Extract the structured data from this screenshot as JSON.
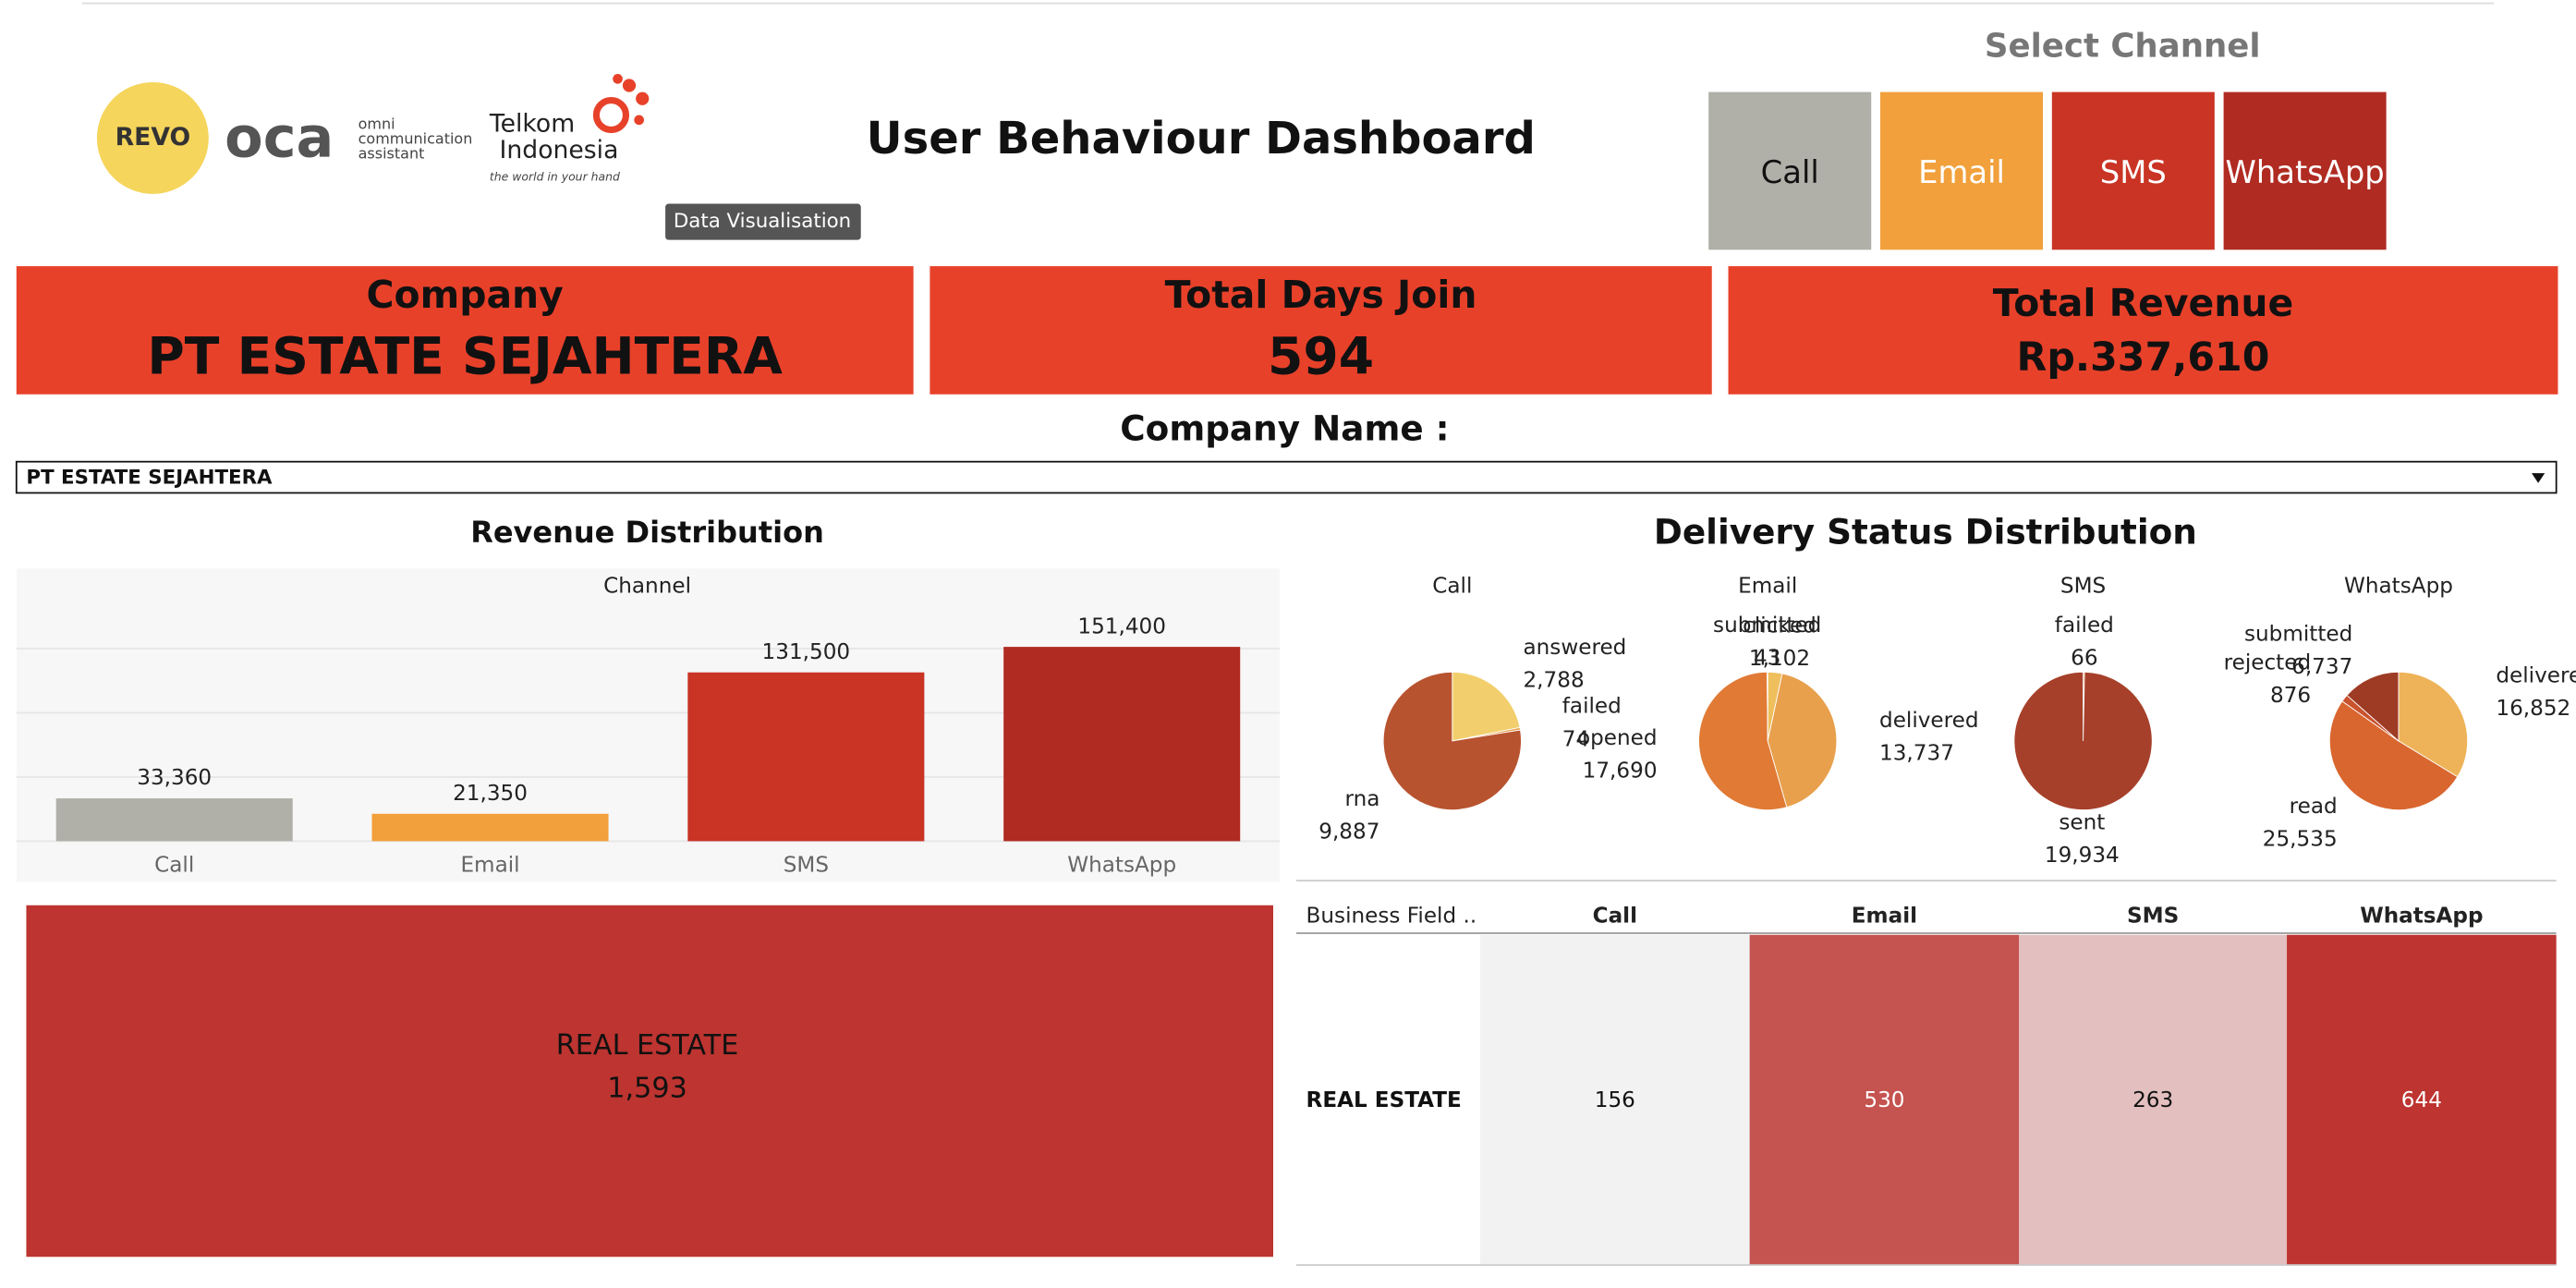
{
  "header": {
    "logo_revo": "REVO",
    "logo_oca": "oca",
    "logo_oca_tagline": [
      "omni",
      "communication",
      "assistant"
    ],
    "logo_telkom": [
      "Telkom",
      "Indonesia"
    ],
    "logo_telkom_tagline": "the world in your hand",
    "tooltip": "Data Visualisation",
    "title": "User Behaviour Dashboard"
  },
  "channel_selector": {
    "label": "Select Channel",
    "buttons": [
      {
        "text": "Call",
        "color": "#b0afa8",
        "text_color": "#111111"
      },
      {
        "text": "Email",
        "color": "#f2a03b",
        "text_color": "#ffffff"
      },
      {
        "text": "SMS",
        "color": "#c93425",
        "text_color": "#ffffff"
      },
      {
        "text": "WhatsApp",
        "color": "#b02b22",
        "text_color": "#ffffff"
      }
    ]
  },
  "kpis": [
    {
      "label": "Company",
      "value": "PT ESTATE SEJAHTERA"
    },
    {
      "label": "Total Days Join",
      "value": 594
    },
    {
      "label": "Total Revenue",
      "value": "Rp.337,610"
    }
  ],
  "filter": {
    "label": "Company Name :",
    "selected": "PT ESTATE SEJAHTERA"
  },
  "chart_data": [
    {
      "type": "bar",
      "title": "Revenue Distribution",
      "header": "Channel",
      "categories": [
        "Call",
        "Email",
        "SMS",
        "WhatsApp"
      ],
      "values": [
        33360,
        21350,
        131500,
        151400
      ],
      "value_labels": [
        "33,360",
        "21,350",
        "131,500",
        "151,400"
      ],
      "colors": [
        "#b0afa8",
        "#f2a03b",
        "#c93425",
        "#b02b22"
      ],
      "ylim": [
        0,
        160000
      ],
      "yticks": [
        0,
        50000,
        100000,
        150000
      ],
      "grid": true
    },
    {
      "type": "pie",
      "title": "Delivery Status Distribution",
      "panels": [
        {
          "name": "Call",
          "labels": [
            "answered",
            "failed",
            "rna"
          ],
          "values": [
            2788,
            74,
            9887
          ],
          "value_labels": [
            "2,788",
            "74",
            "9,887"
          ],
          "colors": [
            "#f2cf6c",
            "#e8a04c",
            "#b8532f"
          ]
        },
        {
          "name": "Email",
          "labels": [
            "clicked",
            "delivered",
            "opened",
            "submitted"
          ],
          "values": [
            1102,
            13737,
            17690,
            43
          ],
          "value_labels": [
            "1,102",
            "13,737",
            "17,690",
            "43"
          ],
          "colors": [
            "#efbf5e",
            "#e8a04c",
            "#e07a35",
            "#a33d26"
          ]
        },
        {
          "name": "SMS",
          "labels": [
            "failed",
            "sent"
          ],
          "values": [
            66,
            19934
          ],
          "value_labels": [
            "66",
            "19,934"
          ],
          "colors": [
            "#e69a4c",
            "#a6402a"
          ]
        },
        {
          "name": "WhatsApp",
          "labels": [
            "delivered",
            "read",
            "rejected",
            "submitted"
          ],
          "values": [
            16852,
            25535,
            876,
            6737
          ],
          "value_labels": [
            "16,852",
            "25,535",
            "876",
            "6,737"
          ],
          "colors": [
            "#eeb358",
            "#d9662f",
            "#c9532e",
            "#9e3b25"
          ]
        }
      ]
    },
    {
      "type": "treemap",
      "categories": [
        "REAL ESTATE"
      ],
      "values": [
        1593
      ],
      "value_labels": [
        "1,593"
      ],
      "color": "#bd3430"
    }
  ],
  "table": {
    "header": [
      "Business Field ..",
      "Call",
      "Email",
      "SMS",
      "WhatsApp"
    ],
    "rows": [
      [
        "REAL ESTATE",
        "156",
        "530",
        "263",
        "644"
      ]
    ],
    "cell_colors": [
      [
        "#f2f2f2",
        "#c5534f",
        "#e3bfbf",
        "#bd3430"
      ]
    ],
    "cell_text_colors": [
      [
        "#111111",
        "#ffffff",
        "#111111",
        "#ffffff"
      ]
    ]
  }
}
